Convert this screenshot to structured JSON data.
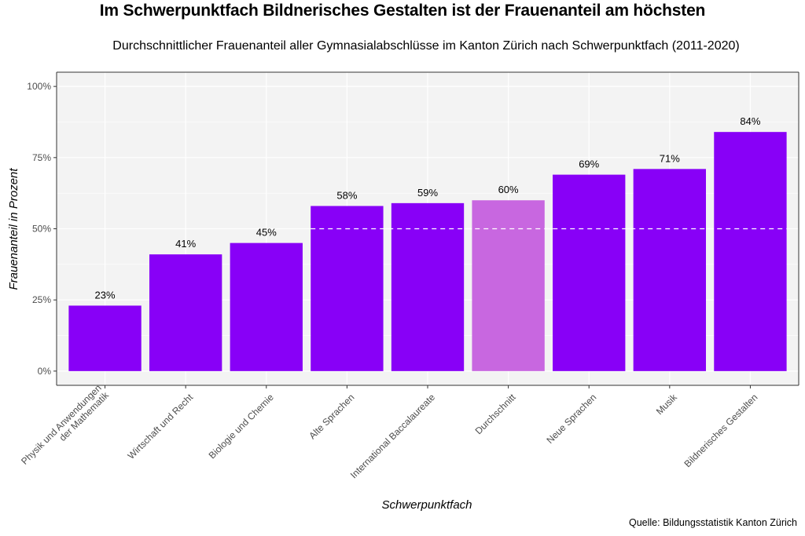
{
  "chart_data": {
    "type": "bar",
    "title": "Im Schwerpunktfach Bildnerisches Gestalten ist der Frauenanteil am höchsten",
    "subtitle": "Durchschnittlicher Frauenanteil aller Gymnasialabschlüsse im Kanton Zürich nach Schwerpunktfach (2011-2020)",
    "xlabel": "Schwerpunktfach",
    "ylabel": "Frauenanteil in Prozent",
    "caption": "Quelle: Bildungsstatistik Kanton Zürich",
    "categories": [
      [
        "Physik und Anwendungen",
        "der Mathematik"
      ],
      [
        "Wirtschaft und Recht"
      ],
      [
        "Biologie und Chemie"
      ],
      [
        "Alte Sprachen"
      ],
      [
        "International Baccalaureate"
      ],
      [
        "Durchschnitt"
      ],
      [
        "Neue Sprachen"
      ],
      [
        "Musik"
      ],
      [
        "Bildnerisches Gestalten"
      ]
    ],
    "values": [
      23,
      41,
      45,
      58,
      59,
      60,
      69,
      71,
      84
    ],
    "value_labels": [
      "23%",
      "41%",
      "45%",
      "58%",
      "59%",
      "60%",
      "69%",
      "71%",
      "84%"
    ],
    "highlight_index": 5,
    "colors": {
      "bar": "#8800f7",
      "highlight": "#c867e0",
      "panel": "#f3f3f3",
      "grid": "#ffffff",
      "reference_line": "#ffffff"
    },
    "reference_line": {
      "y": 50,
      "style": "dashed",
      "from_category_index": 3
    },
    "yticks": [
      0,
      25,
      50,
      75,
      100
    ],
    "ytick_labels": [
      "0%",
      "25%",
      "50%",
      "75%",
      "100%"
    ],
    "ylim": [
      -5,
      105
    ],
    "grid": true,
    "legend": "none"
  }
}
